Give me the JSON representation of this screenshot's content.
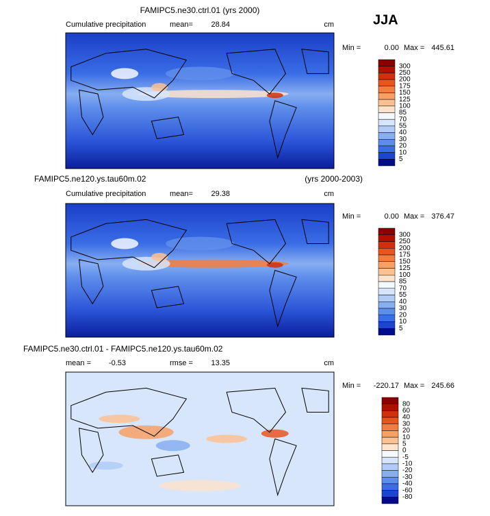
{
  "season": "JJA",
  "panels": [
    {
      "title": "FAMIPC5.ne30.ctrl.01 (yrs 2000)",
      "title_right": null,
      "field": "Cumulative precipitation",
      "stats": [
        {
          "label": "mean=",
          "value": "28.84"
        }
      ],
      "units": "cm",
      "min_label": "Min =",
      "min": "0.00",
      "max_label": "Max =",
      "max": "445.61",
      "levels": [
        "300",
        "250",
        "200",
        "175",
        "150",
        "125",
        "100",
        "85",
        "70",
        "55",
        "40",
        "30",
        "20",
        "10",
        "5"
      ],
      "colors": [
        "#8b0000",
        "#b01000",
        "#d2300c",
        "#e8561e",
        "#f47c3e",
        "#f8a064",
        "#fbc192",
        "#fde2cc",
        "#f4f8ff",
        "#d6e5fb",
        "#b0cbf6",
        "#87aef1",
        "#5e8eeb",
        "#3a6de6",
        "#1c46d2",
        "#000c8a"
      ]
    },
    {
      "title": "FAMIPC5.ne120.ys.tau60m.02",
      "title_right": "(yrs 2000-2003)",
      "field": "Cumulative precipitation",
      "stats": [
        {
          "label": "mean=",
          "value": "29.38"
        }
      ],
      "units": "cm",
      "min_label": "Min =",
      "min": "0.00",
      "max_label": "Max =",
      "max": "376.47",
      "levels": [
        "300",
        "250",
        "200",
        "175",
        "150",
        "125",
        "100",
        "85",
        "70",
        "55",
        "40",
        "30",
        "20",
        "10",
        "5"
      ],
      "colors": [
        "#8b0000",
        "#b01000",
        "#d2300c",
        "#e8561e",
        "#f47c3e",
        "#f8a064",
        "#fbc192",
        "#fde2cc",
        "#f4f8ff",
        "#d6e5fb",
        "#b0cbf6",
        "#87aef1",
        "#5e8eeb",
        "#3a6de6",
        "#1c46d2",
        "#000c8a"
      ]
    },
    {
      "title": "FAMIPC5.ne30.ctrl.01 - FAMIPC5.ne120.ys.tau60m.02",
      "title_right": null,
      "field": null,
      "stats": [
        {
          "label": "mean =",
          "value": "-0.53"
        },
        {
          "label": "rmse =",
          "value": "13.35"
        }
      ],
      "units": "cm",
      "min_label": "Min =",
      "min": "-220.17",
      "max_label": "Max =",
      "max": "245.66",
      "levels": [
        "80",
        "60",
        "40",
        "30",
        "20",
        "10",
        "5",
        "0",
        "-5",
        "-10",
        "-20",
        "-30",
        "-40",
        "-60",
        "-80"
      ],
      "colors": [
        "#8b0000",
        "#b01000",
        "#d2300c",
        "#e8561e",
        "#f47c3e",
        "#f8a064",
        "#fbc192",
        "#fde2cc",
        "#f6f9ff",
        "#d6e5fb",
        "#b0cbf6",
        "#87aef1",
        "#5e8eeb",
        "#3a6de6",
        "#1c46d2",
        "#000c8a"
      ]
    }
  ]
}
